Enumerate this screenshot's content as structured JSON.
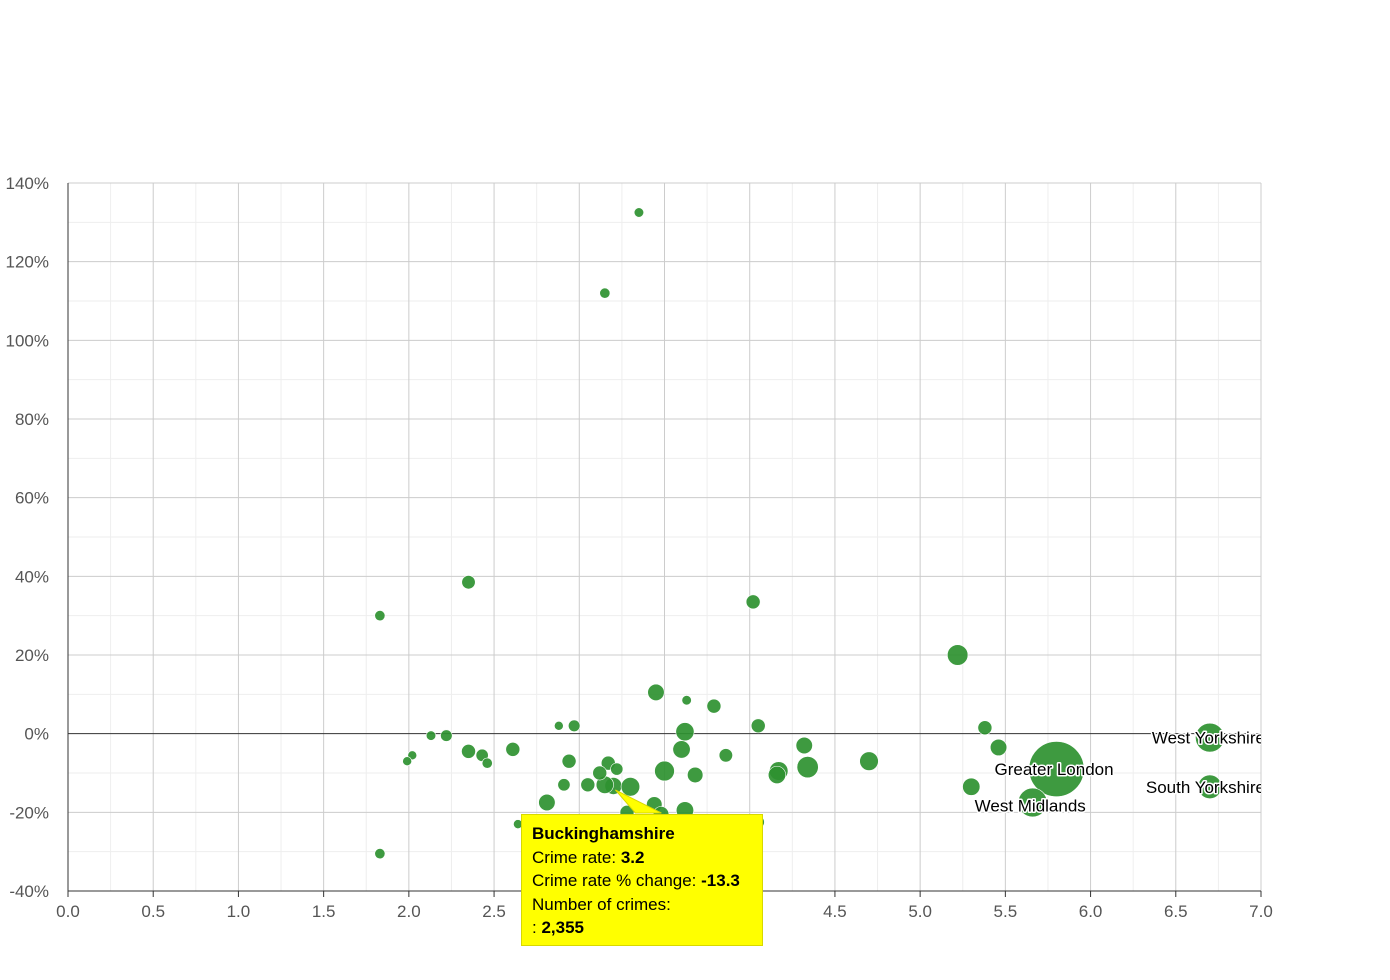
{
  "chart_data": {
    "type": "scatter",
    "title": "",
    "xlabel": "",
    "ylabel": "",
    "xlim": [
      0,
      7
    ],
    "ylim": [
      -40,
      140
    ],
    "x_ticks": [
      "0.0",
      "0.5",
      "1.0",
      "1.5",
      "2.0",
      "2.5",
      "3.0",
      "3.5",
      "4.0",
      "4.5",
      "5.0",
      "5.5",
      "6.0",
      "6.5",
      "7.0"
    ],
    "y_ticks": [
      "-40%",
      "-20%",
      "0%",
      "20%",
      "40%",
      "60%",
      "80%",
      "100%",
      "120%",
      "140%"
    ],
    "grid": true,
    "bubble_color": "#2e9130",
    "points": [
      {
        "name": "",
        "x": 3.35,
        "y": 132.5,
        "crimes": 600
      },
      {
        "name": "",
        "x": 3.15,
        "y": 112.0,
        "crimes": 700
      },
      {
        "name": "",
        "x": 2.35,
        "y": 38.5,
        "crimes": 1200
      },
      {
        "name": "",
        "x": 1.83,
        "y": 30.0,
        "crimes": 700
      },
      {
        "name": "",
        "x": 4.02,
        "y": 33.5,
        "crimes": 1300
      },
      {
        "name": "",
        "x": 5.22,
        "y": 20.0,
        "crimes": 2800
      },
      {
        "name": "",
        "x": 3.45,
        "y": 10.5,
        "crimes": 1800
      },
      {
        "name": "",
        "x": 3.63,
        "y": 8.5,
        "crimes": 600
      },
      {
        "name": "",
        "x": 3.79,
        "y": 7.0,
        "crimes": 1300
      },
      {
        "name": "",
        "x": 2.88,
        "y": 2.0,
        "crimes": 400
      },
      {
        "name": "",
        "x": 2.97,
        "y": 2.0,
        "crimes": 900
      },
      {
        "name": "",
        "x": 4.05,
        "y": 2.0,
        "crimes": 1300
      },
      {
        "name": "",
        "x": 3.62,
        "y": 0.5,
        "crimes": 2200
      },
      {
        "name": "",
        "x": 5.38,
        "y": 1.5,
        "crimes": 1300
      },
      {
        "name": "",
        "x": 2.13,
        "y": -0.5,
        "crimes": 600
      },
      {
        "name": "",
        "x": 2.22,
        "y": -0.5,
        "crimes": 900
      },
      {
        "name": "",
        "x": 2.02,
        "y": -5.5,
        "crimes": 400
      },
      {
        "name": "",
        "x": 1.99,
        "y": -7.0,
        "crimes": 400
      },
      {
        "name": "",
        "x": 2.35,
        "y": -4.5,
        "crimes": 1300
      },
      {
        "name": "",
        "x": 2.43,
        "y": -5.5,
        "crimes": 1000
      },
      {
        "name": "",
        "x": 2.46,
        "y": -7.5,
        "crimes": 700
      },
      {
        "name": "",
        "x": 2.61,
        "y": -4.0,
        "crimes": 1300
      },
      {
        "name": "",
        "x": 3.6,
        "y": -4.0,
        "crimes": 2000
      },
      {
        "name": "",
        "x": 3.86,
        "y": -5.5,
        "crimes": 1200
      },
      {
        "name": "",
        "x": 4.32,
        "y": -3.0,
        "crimes": 1800
      },
      {
        "name": "",
        "x": 5.46,
        "y": -3.5,
        "crimes": 1800
      },
      {
        "name": "",
        "x": 2.94,
        "y": -7.0,
        "crimes": 1300
      },
      {
        "name": "",
        "x": 3.17,
        "y": -7.5,
        "crimes": 1300
      },
      {
        "name": "",
        "x": 3.22,
        "y": -9.0,
        "crimes": 1000
      },
      {
        "name": "",
        "x": 3.12,
        "y": -10.0,
        "crimes": 1300
      },
      {
        "name": "",
        "x": 3.5,
        "y": -9.5,
        "crimes": 2600
      },
      {
        "name": "",
        "x": 3.68,
        "y": -10.5,
        "crimes": 1600
      },
      {
        "name": "",
        "x": 4.17,
        "y": -9.5,
        "crimes": 2300
      },
      {
        "name": "",
        "x": 4.16,
        "y": -10.5,
        "crimes": 2000
      },
      {
        "name": "",
        "x": 4.34,
        "y": -8.5,
        "crimes": 3000
      },
      {
        "name": "",
        "x": 4.7,
        "y": -7.0,
        "crimes": 2300
      },
      {
        "name": "",
        "x": 2.91,
        "y": -13.0,
        "crimes": 1000
      },
      {
        "name": "",
        "x": 3.05,
        "y": -13.0,
        "crimes": 1300
      },
      {
        "name": "",
        "x": 3.15,
        "y": -13.0,
        "crimes": 2000
      },
      {
        "name": "Buckinghamshire",
        "x": 3.2,
        "y": -13.3,
        "crimes": 2355,
        "highlighted": true
      },
      {
        "name": "",
        "x": 3.3,
        "y": -13.5,
        "crimes": 2300
      },
      {
        "name": "",
        "x": 2.81,
        "y": -17.5,
        "crimes": 1800
      },
      {
        "name": "",
        "x": 3.28,
        "y": -20.0,
        "crimes": 1300
      },
      {
        "name": "",
        "x": 3.44,
        "y": -18.0,
        "crimes": 1600
      },
      {
        "name": "",
        "x": 3.48,
        "y": -20.5,
        "crimes": 1600
      },
      {
        "name": "",
        "x": 3.62,
        "y": -19.5,
        "crimes": 2000
      },
      {
        "name": "",
        "x": 2.64,
        "y": -23.0,
        "crimes": 500
      },
      {
        "name": "",
        "x": 3.74,
        "y": -22.5,
        "crimes": 1300
      },
      {
        "name": "",
        "x": 4.05,
        "y": -22.5,
        "crimes": 1000
      },
      {
        "name": "",
        "x": 1.83,
        "y": -30.5,
        "crimes": 700
      },
      {
        "name": "",
        "x": 5.3,
        "y": -13.5,
        "crimes": 2000
      },
      {
        "name": "West Midlands",
        "x": 5.66,
        "y": -17.5,
        "crimes": 5500
      },
      {
        "name": "Greater London",
        "x": 5.8,
        "y": -9.0,
        "crimes": 20000
      },
      {
        "name": "West Yorkshire",
        "x": 6.7,
        "y": -1.0,
        "crimes": 5500
      },
      {
        "name": "South Yorkshire",
        "x": 6.7,
        "y": -13.5,
        "crimes": 3700
      }
    ],
    "labels": [
      "West Yorkshire",
      "Greater London",
      "West Midlands",
      "South Yorkshire"
    ]
  },
  "tooltip": {
    "title": "Buckinghamshire",
    "crime_rate_label": "Crime rate:",
    "crime_rate_value": "3.2",
    "change_label": "Crime rate % change:",
    "change_value": "-13.3",
    "crimes_label": "Number of crimes:",
    "crimes_prefix": ":",
    "crimes_value": "2,355"
  }
}
